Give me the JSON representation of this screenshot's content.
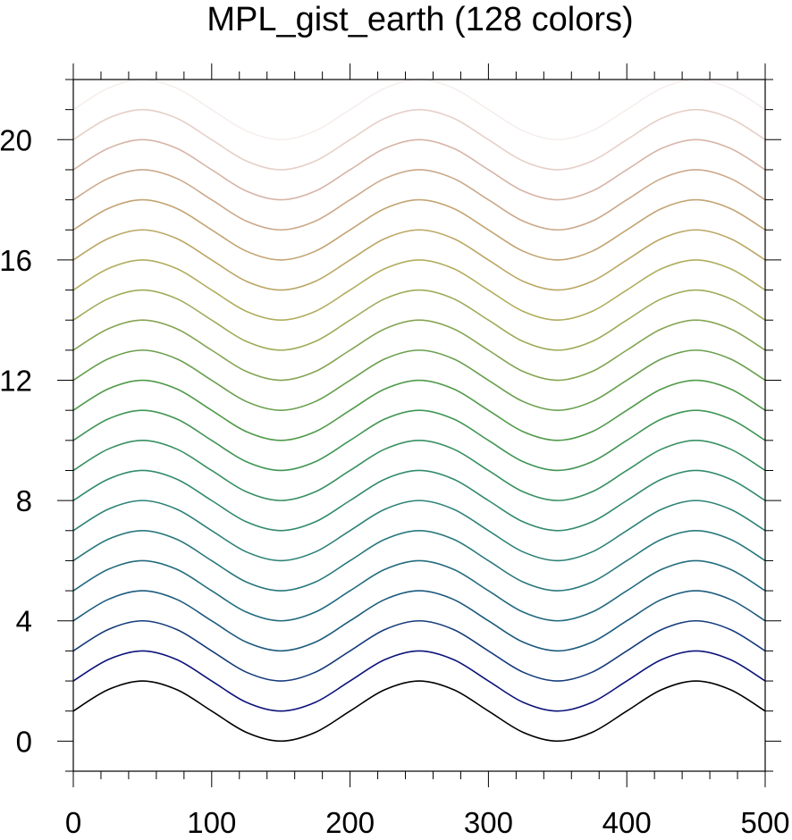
{
  "chart_data": {
    "type": "line",
    "title": "MPL_gist_earth (128 colors)",
    "xlabel": "",
    "ylabel": "",
    "xlim": [
      0,
      500
    ],
    "ylim": [
      -1,
      22
    ],
    "x_ticks": [
      0,
      100,
      200,
      300,
      400,
      500
    ],
    "y_ticks": [
      0,
      4,
      8,
      12,
      16,
      20
    ],
    "x_tick_labels": [
      "0",
      "100",
      "200",
      "300",
      "400",
      "500"
    ],
    "y_tick_labels": [
      "0",
      "4",
      "8",
      "12",
      "16",
      "20"
    ],
    "grid": false,
    "legend": "none",
    "x": [
      0,
      25,
      50,
      75,
      100,
      125,
      150,
      175,
      200,
      225,
      250,
      275,
      300,
      325,
      350,
      375,
      400,
      425,
      450,
      475,
      500
    ],
    "series": [
      {
        "color": "#000000",
        "values": [
          1.0,
          1.707,
          2.0,
          1.707,
          1.0,
          0.293,
          0.0,
          0.293,
          1.0,
          1.707,
          2.0,
          1.707,
          1.0,
          0.293,
          0.0,
          0.293,
          1.0,
          1.707,
          2.0,
          1.707,
          1.0
        ]
      },
      {
        "color": "#0c137a",
        "values": [
          2.0,
          2.707,
          3.0,
          2.707,
          2.0,
          1.293,
          1.0,
          1.293,
          2.0,
          2.707,
          3.0,
          2.707,
          2.0,
          1.293,
          1.0,
          1.293,
          2.0,
          2.707,
          3.0,
          2.707,
          2.0
        ]
      },
      {
        "color": "#163c7c",
        "values": [
          3.0,
          3.707,
          4.0,
          3.707,
          3.0,
          2.293,
          2.0,
          2.293,
          3.0,
          3.707,
          4.0,
          3.707,
          3.0,
          2.293,
          2.0,
          2.293,
          3.0,
          3.707,
          4.0,
          3.707,
          3.0
        ]
      },
      {
        "color": "#1c5a7e",
        "values": [
          4.0,
          4.707,
          5.0,
          4.707,
          4.0,
          3.293,
          3.0,
          3.293,
          4.0,
          4.707,
          5.0,
          4.707,
          4.0,
          3.293,
          3.0,
          3.293,
          4.0,
          4.707,
          5.0,
          4.707,
          4.0
        ]
      },
      {
        "color": "#226b7e",
        "values": [
          5.0,
          5.707,
          6.0,
          5.707,
          5.0,
          4.293,
          4.0,
          4.293,
          5.0,
          5.707,
          6.0,
          5.707,
          5.0,
          4.293,
          4.0,
          4.293,
          5.0,
          5.707,
          6.0,
          5.707,
          5.0
        ]
      },
      {
        "color": "#28787c",
        "values": [
          6.0,
          6.707,
          7.0,
          6.707,
          6.0,
          5.293,
          5.0,
          5.293,
          6.0,
          6.707,
          7.0,
          6.707,
          6.0,
          5.293,
          5.0,
          5.293,
          6.0,
          6.707,
          7.0,
          6.707,
          6.0
        ]
      },
      {
        "color": "#2d8276",
        "values": [
          7.0,
          7.707,
          8.0,
          7.707,
          7.0,
          6.293,
          6.0,
          6.293,
          7.0,
          7.707,
          8.0,
          7.707,
          7.0,
          6.293,
          6.0,
          6.293,
          7.0,
          7.707,
          8.0,
          7.707,
          7.0
        ]
      },
      {
        "color": "#328a6c",
        "values": [
          8.0,
          8.707,
          9.0,
          8.707,
          8.0,
          7.293,
          7.0,
          7.293,
          8.0,
          8.707,
          9.0,
          8.707,
          8.0,
          7.293,
          7.0,
          7.293,
          8.0,
          8.707,
          9.0,
          8.707,
          8.0
        ]
      },
      {
        "color": "#389062",
        "values": [
          9.0,
          9.707,
          10.0,
          9.707,
          9.0,
          8.293,
          8.0,
          8.293,
          9.0,
          9.707,
          10.0,
          9.707,
          9.0,
          8.293,
          8.0,
          8.293,
          9.0,
          9.707,
          10.0,
          9.707,
          9.0
        ]
      },
      {
        "color": "#3f9554",
        "values": [
          10.0,
          10.707,
          11.0,
          10.707,
          10.0,
          9.293,
          9.0,
          9.293,
          10.0,
          10.707,
          11.0,
          10.707,
          10.0,
          9.293,
          9.0,
          9.293,
          10.0,
          10.707,
          11.0,
          10.707,
          10.0
        ]
      },
      {
        "color": "#4f9a49",
        "values": [
          11.0,
          11.707,
          12.0,
          11.707,
          11.0,
          10.293,
          10.0,
          10.293,
          11.0,
          11.707,
          12.0,
          11.707,
          11.0,
          10.293,
          10.0,
          10.293,
          11.0,
          11.707,
          12.0,
          11.707,
          11.0
        ]
      },
      {
        "color": "#699f4d",
        "values": [
          12.0,
          12.707,
          13.0,
          12.707,
          12.0,
          11.293,
          11.0,
          11.293,
          12.0,
          12.707,
          13.0,
          12.707,
          12.0,
          11.293,
          11.0,
          11.293,
          12.0,
          12.707,
          13.0,
          12.707,
          12.0
        ]
      },
      {
        "color": "#85a553",
        "values": [
          13.0,
          13.707,
          14.0,
          13.707,
          13.0,
          12.293,
          12.0,
          12.293,
          13.0,
          13.707,
          14.0,
          13.707,
          13.0,
          12.293,
          12.0,
          12.293,
          13.0,
          13.707,
          14.0,
          13.707,
          13.0
        ]
      },
      {
        "color": "#9fab59",
        "values": [
          14.0,
          14.707,
          15.0,
          14.707,
          14.0,
          13.293,
          13.0,
          13.293,
          14.0,
          14.707,
          15.0,
          14.707,
          14.0,
          13.293,
          13.0,
          13.293,
          14.0,
          14.707,
          15.0,
          14.707,
          14.0
        ]
      },
      {
        "color": "#b1ad5e",
        "values": [
          15.0,
          15.707,
          16.0,
          15.707,
          15.0,
          14.293,
          14.0,
          14.293,
          15.0,
          15.707,
          16.0,
          15.707,
          15.0,
          14.293,
          14.0,
          14.293,
          15.0,
          15.707,
          16.0,
          15.707,
          15.0
        ]
      },
      {
        "color": "#bba663",
        "values": [
          16.0,
          16.707,
          17.0,
          16.707,
          16.0,
          15.293,
          15.0,
          15.293,
          16.0,
          16.707,
          17.0,
          16.707,
          16.0,
          15.293,
          15.0,
          15.293,
          16.0,
          16.707,
          17.0,
          16.707,
          16.0
        ]
      },
      {
        "color": "#c3a472",
        "values": [
          17.0,
          17.707,
          18.0,
          17.707,
          17.0,
          16.293,
          16.0,
          16.293,
          17.0,
          17.707,
          18.0,
          17.707,
          17.0,
          16.293,
          16.0,
          16.293,
          17.0,
          17.707,
          18.0,
          17.707,
          17.0
        ]
      },
      {
        "color": "#cba98b",
        "values": [
          18.0,
          18.707,
          19.0,
          18.707,
          18.0,
          17.293,
          17.0,
          17.293,
          18.0,
          18.707,
          19.0,
          18.707,
          18.0,
          17.293,
          17.0,
          17.293,
          18.0,
          18.707,
          19.0,
          18.707,
          18.0
        ]
      },
      {
        "color": "#d6b5a6",
        "values": [
          19.0,
          19.707,
          20.0,
          19.707,
          19.0,
          18.293,
          18.0,
          18.293,
          19.0,
          19.707,
          20.0,
          19.707,
          19.0,
          18.293,
          18.0,
          18.293,
          19.0,
          19.707,
          20.0,
          19.707,
          19.0
        ]
      },
      {
        "color": "#e6cfc8",
        "values": [
          20.0,
          20.707,
          21.0,
          20.707,
          20.0,
          19.293,
          19.0,
          19.293,
          20.0,
          20.707,
          21.0,
          20.707,
          20.0,
          19.293,
          19.0,
          19.293,
          20.0,
          20.707,
          21.0,
          20.707,
          20.0
        ]
      },
      {
        "color": "#f6eeec",
        "values": [
          21.0,
          21.707,
          22.0,
          21.707,
          21.0,
          20.293,
          20.0,
          20.293,
          21.0,
          21.707,
          22.0,
          21.707,
          21.0,
          20.293,
          20.0,
          20.293,
          21.0,
          21.707,
          22.0,
          21.707,
          21.0
        ]
      }
    ]
  }
}
